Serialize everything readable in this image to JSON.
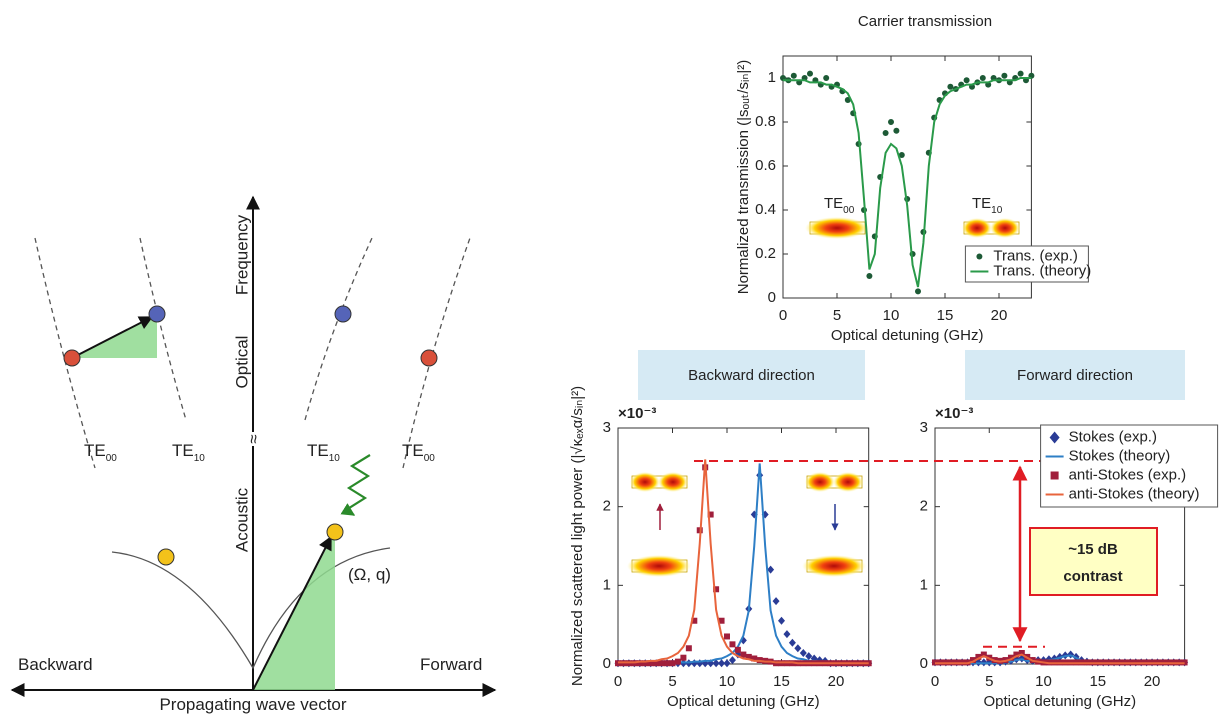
{
  "chart_data": [
    {
      "type": "scatter",
      "title": "Carrier transmission",
      "xlabel": "Optical detuning (GHz)",
      "ylabel": "Normalized transmission (|sₒᵤₜ/sᵢₙ|²)",
      "x": [
        0,
        0.5,
        1,
        1.5,
        2,
        2.5,
        3,
        3.5,
        4,
        4.5,
        5,
        5.5,
        6,
        6.5,
        7,
        7.5,
        8,
        8.5,
        9,
        9.5,
        10,
        10.5,
        11,
        11.5,
        12,
        12.5,
        13,
        13.5,
        14,
        14.5,
        15,
        15.5,
        16,
        16.5,
        17,
        17.5,
        18,
        18.5,
        19,
        19.5,
        20,
        20.5,
        21,
        21.5,
        22,
        22.5,
        23
      ],
      "xlim": [
        0,
        23
      ],
      "xticks": [
        0,
        5,
        10,
        15,
        20
      ],
      "ylim": [
        0,
        1.1
      ],
      "yticks": [
        0,
        0.2,
        0.4,
        0.6,
        0.8,
        1
      ],
      "legend": "lower right",
      "annotations": [
        {
          "text": "TE",
          "sub": "00"
        },
        {
          "text": "TE",
          "sub": "10"
        }
      ],
      "series": [
        {
          "name": "Trans. (exp.)",
          "mode": "markers",
          "marker": "circle",
          "color": "#1d5a36",
          "values": [
            1.0,
            0.99,
            1.01,
            0.98,
            1.0,
            1.02,
            0.99,
            0.97,
            1.0,
            0.96,
            0.97,
            0.94,
            0.9,
            0.84,
            0.7,
            0.4,
            0.1,
            0.28,
            0.55,
            0.75,
            0.8,
            0.76,
            0.65,
            0.45,
            0.2,
            0.03,
            0.3,
            0.66,
            0.82,
            0.9,
            0.93,
            0.96,
            0.95,
            0.97,
            0.99,
            0.96,
            0.98,
            1.0,
            0.97,
            1.0,
            0.99,
            1.01,
            0.98,
            1.0,
            1.02,
            0.99,
            1.01
          ]
        },
        {
          "name": "Trans. (theory)",
          "mode": "lines",
          "color": "#2a9a4a",
          "values": [
            0.99,
            0.99,
            0.99,
            0.99,
            0.99,
            0.98,
            0.98,
            0.98,
            0.97,
            0.97,
            0.96,
            0.95,
            0.93,
            0.88,
            0.75,
            0.45,
            0.13,
            0.2,
            0.5,
            0.66,
            0.7,
            0.68,
            0.6,
            0.42,
            0.15,
            0.05,
            0.25,
            0.6,
            0.8,
            0.88,
            0.92,
            0.94,
            0.95,
            0.96,
            0.97,
            0.97,
            0.98,
            0.98,
            0.98,
            0.99,
            0.99,
            0.99,
            0.99,
            0.99,
            1.0,
            1.0,
            1.0
          ]
        }
      ]
    },
    {
      "type": "scatter",
      "title": "Backward direction",
      "xlabel": "Optical detuning (GHz)",
      "ylabel": "Normalized scattered light power (|√κₑₓα/sᵢₙ|²)",
      "y_multiplier": "×10⁻³",
      "x": [
        0,
        0.5,
        1,
        1.5,
        2,
        2.5,
        3,
        3.5,
        4,
        4.5,
        5,
        5.5,
        6,
        6.5,
        7,
        7.5,
        8,
        8.5,
        9,
        9.5,
        10,
        10.5,
        11,
        11.5,
        12,
        12.5,
        13,
        13.5,
        14,
        14.5,
        15,
        15.5,
        16,
        16.5,
        17,
        17.5,
        18,
        18.5,
        19,
        19.5,
        20,
        20.5,
        21,
        21.5,
        22,
        22.5,
        23
      ],
      "xlim": [
        0,
        23
      ],
      "xticks": [
        0,
        5,
        10,
        15,
        20
      ],
      "ylim": [
        0,
        3
      ],
      "yticks": [
        0,
        1,
        2,
        3
      ],
      "series": [
        {
          "name": "Stokes (exp.)",
          "mode": "markers",
          "marker": "diamond",
          "color": "#2a3c96",
          "values": [
            0.01,
            0.01,
            0.01,
            0.01,
            0.01,
            0.01,
            0.01,
            0.01,
            0.01,
            0.01,
            0.01,
            0.01,
            0.01,
            0.01,
            0.01,
            0.01,
            0.01,
            0.01,
            0.01,
            0.01,
            0.01,
            0.05,
            0.12,
            0.3,
            0.7,
            1.9,
            2.4,
            1.9,
            1.2,
            0.8,
            0.55,
            0.38,
            0.27,
            0.2,
            0.14,
            0.1,
            0.07,
            0.05,
            0.04,
            0.01,
            0.01,
            0.01,
            0.01,
            0.01,
            0.01,
            0.01,
            0.01
          ]
        },
        {
          "name": "Stokes (theory)",
          "mode": "lines",
          "color": "#2e7fc6",
          "values": [
            0.01,
            0.01,
            0.01,
            0.01,
            0.01,
            0.01,
            0.01,
            0.01,
            0.01,
            0.01,
            0.02,
            0.02,
            0.02,
            0.02,
            0.03,
            0.03,
            0.04,
            0.04,
            0.06,
            0.07,
            0.1,
            0.14,
            0.22,
            0.36,
            0.68,
            1.5,
            2.55,
            1.5,
            0.68,
            0.36,
            0.22,
            0.14,
            0.1,
            0.07,
            0.06,
            0.04,
            0.04,
            0.03,
            0.03,
            0.02,
            0.02,
            0.02,
            0.02,
            0.01,
            0.01,
            0.01,
            0.01
          ]
        },
        {
          "name": "anti-Stokes (exp.)",
          "mode": "markers",
          "marker": "square",
          "color": "#a01f3c",
          "values": [
            0.01,
            0.01,
            0.01,
            0.01,
            0.01,
            0.01,
            0.01,
            0.01,
            0.01,
            0.01,
            0.01,
            0.03,
            0.08,
            0.2,
            0.55,
            1.7,
            2.5,
            1.9,
            0.95,
            0.55,
            0.35,
            0.25,
            0.18,
            0.12,
            0.09,
            0.07,
            0.05,
            0.04,
            0.03,
            0.01,
            0.01,
            0.01,
            0.01,
            0.01,
            0.01,
            0.01,
            0.01,
            0.01,
            0.01,
            0.01,
            0.01,
            0.01,
            0.01,
            0.01,
            0.01,
            0.01,
            0.01
          ]
        },
        {
          "name": "anti-Stokes (theory)",
          "mode": "lines",
          "color": "#e8643c",
          "values": [
            0.02,
            0.02,
            0.02,
            0.02,
            0.03,
            0.03,
            0.04,
            0.04,
            0.06,
            0.07,
            0.1,
            0.14,
            0.22,
            0.36,
            0.69,
            1.53,
            2.6,
            1.53,
            0.69,
            0.36,
            0.22,
            0.14,
            0.1,
            0.07,
            0.06,
            0.04,
            0.04,
            0.03,
            0.03,
            0.02,
            0.02,
            0.02,
            0.02,
            0.01,
            0.01,
            0.01,
            0.01,
            0.01,
            0.01,
            0.01,
            0.01,
            0.01,
            0.01,
            0.01,
            0.01,
            0.01,
            0.01
          ]
        }
      ]
    },
    {
      "type": "scatter",
      "title": "Forward direction",
      "xlabel": "Optical detuning (GHz)",
      "y_multiplier": "×10⁻³",
      "x": [
        0,
        0.5,
        1,
        1.5,
        2,
        2.5,
        3,
        3.5,
        4,
        4.5,
        5,
        5.5,
        6,
        6.5,
        7,
        7.5,
        8,
        8.5,
        9,
        9.5,
        10,
        10.5,
        11,
        11.5,
        12,
        12.5,
        13,
        13.5,
        14,
        14.5,
        15,
        15.5,
        16,
        16.5,
        17,
        17.5,
        18,
        18.5,
        19,
        19.5,
        20,
        20.5,
        21,
        21.5,
        22,
        22.5,
        23
      ],
      "xlim": [
        0,
        23
      ],
      "xticks": [
        0,
        5,
        10,
        15,
        20
      ],
      "ylim": [
        0,
        3
      ],
      "yticks": [
        0,
        1,
        2,
        3
      ],
      "legend": "upper right",
      "reference_lines": [
        2.58,
        0.22
      ],
      "annotation": [
        "~15 dB",
        "contrast"
      ],
      "series": [
        {
          "name": "Stokes (exp.)",
          "mode": "markers",
          "marker": "diamond",
          "color": "#2a3c96",
          "values": [
            0.02,
            0.02,
            0.02,
            0.02,
            0.02,
            0.02,
            0.02,
            0.02,
            0.02,
            0.02,
            0.02,
            0.02,
            0.02,
            0.03,
            0.04,
            0.06,
            0.07,
            0.05,
            0.04,
            0.05,
            0.05,
            0.06,
            0.07,
            0.09,
            0.11,
            0.12,
            0.09,
            0.05,
            0.03,
            0.02,
            0.02,
            0.02,
            0.02,
            0.02,
            0.02,
            0.02,
            0.02,
            0.02,
            0.02,
            0.02,
            0.02,
            0.02,
            0.02,
            0.02,
            0.02,
            0.02,
            0.02
          ]
        },
        {
          "name": "Stokes (theory)",
          "mode": "lines",
          "color": "#2e7fc6",
          "values": [
            0.01,
            0.01,
            0.01,
            0.01,
            0.01,
            0.01,
            0.01,
            0.01,
            0.01,
            0.01,
            0.01,
            0.01,
            0.01,
            0.02,
            0.03,
            0.05,
            0.06,
            0.04,
            0.03,
            0.03,
            0.04,
            0.05,
            0.06,
            0.08,
            0.1,
            0.11,
            0.08,
            0.04,
            0.02,
            0.01,
            0.01,
            0.01,
            0.01,
            0.01,
            0.01,
            0.01,
            0.01,
            0.01,
            0.01,
            0.01,
            0.01,
            0.01,
            0.01,
            0.01,
            0.01,
            0.01,
            0.01
          ]
        },
        {
          "name": "anti-Stokes (exp.)",
          "mode": "markers",
          "marker": "square",
          "color": "#a01f3c",
          "values": [
            0.02,
            0.02,
            0.02,
            0.02,
            0.02,
            0.02,
            0.02,
            0.05,
            0.09,
            0.12,
            0.08,
            0.05,
            0.04,
            0.05,
            0.08,
            0.12,
            0.14,
            0.09,
            0.05,
            0.03,
            0.02,
            0.02,
            0.02,
            0.02,
            0.02,
            0.02,
            0.02,
            0.02,
            0.02,
            0.02,
            0.02,
            0.02,
            0.02,
            0.02,
            0.02,
            0.02,
            0.02,
            0.02,
            0.02,
            0.02,
            0.02,
            0.02,
            0.02,
            0.02,
            0.02,
            0.02,
            0.02
          ]
        },
        {
          "name": "anti-Stokes (theory)",
          "mode": "lines",
          "color": "#e8643c",
          "values": [
            0.01,
            0.01,
            0.01,
            0.01,
            0.01,
            0.01,
            0.01,
            0.03,
            0.07,
            0.1,
            0.07,
            0.04,
            0.03,
            0.04,
            0.06,
            0.1,
            0.12,
            0.08,
            0.04,
            0.03,
            0.02,
            0.01,
            0.01,
            0.01,
            0.01,
            0.01,
            0.01,
            0.01,
            0.01,
            0.01,
            0.01,
            0.01,
            0.01,
            0.01,
            0.01,
            0.01,
            0.01,
            0.01,
            0.01,
            0.01,
            0.01,
            0.01,
            0.01,
            0.01,
            0.01,
            0.01,
            0.01
          ]
        }
      ]
    }
  ],
  "diagram": {
    "frequency": "Frequency",
    "optical": "Optical",
    "acoustic": "Acoustic",
    "break": "≈",
    "backward": "Backward",
    "forward": "Forward",
    "wave_vector": "Propagating wave vector",
    "point": "(Ω, q)",
    "modes": [
      {
        "text": "TE",
        "sub": "00"
      },
      {
        "text": "TE",
        "sub": "10"
      },
      {
        "text": "TE",
        "sub": "10"
      },
      {
        "text": "TE",
        "sub": "00"
      }
    ]
  }
}
